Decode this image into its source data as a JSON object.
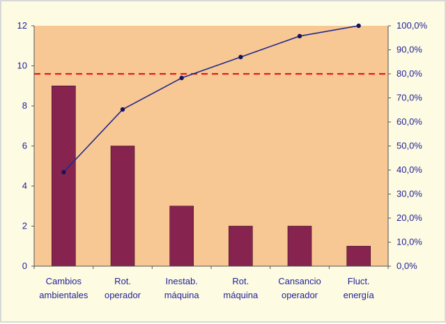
{
  "chart_data": {
    "type": "bar",
    "categories": [
      [
        "Cambios",
        "ambientales"
      ],
      [
        "Rot.",
        "operador"
      ],
      [
        "Inestab.",
        "máquina"
      ],
      [
        "Rot.",
        "máquina"
      ],
      [
        "Cansancio",
        "operador"
      ],
      [
        "Fluct.",
        "energía"
      ]
    ],
    "series": [
      {
        "type": "bar",
        "values": [
          9,
          6,
          3,
          2,
          2,
          1
        ],
        "color": "#86244f"
      },
      {
        "type": "line",
        "axis": "right",
        "values": [
          39.1,
          65.2,
          78.3,
          87.0,
          95.7,
          100.0
        ],
        "color": "#1f2a8a"
      }
    ],
    "reference_line": {
      "axis": "right",
      "value": 80.0,
      "color": "#e8141a",
      "style": "dashed"
    },
    "ylim_left": [
      0,
      12
    ],
    "yticks_left": [
      "0",
      "2",
      "4",
      "6",
      "8",
      "10",
      "12"
    ],
    "ylim_right": [
      0,
      100
    ],
    "yticks_right": [
      "0,0%",
      "10,0%",
      "20,0%",
      "30,0%",
      "40,0%",
      "50,0%",
      "60,0%",
      "70,0%",
      "80,0%",
      "90,0%",
      "100,0%"
    ],
    "plot_background": "#f8c894",
    "grid": false,
    "legend": "none"
  }
}
